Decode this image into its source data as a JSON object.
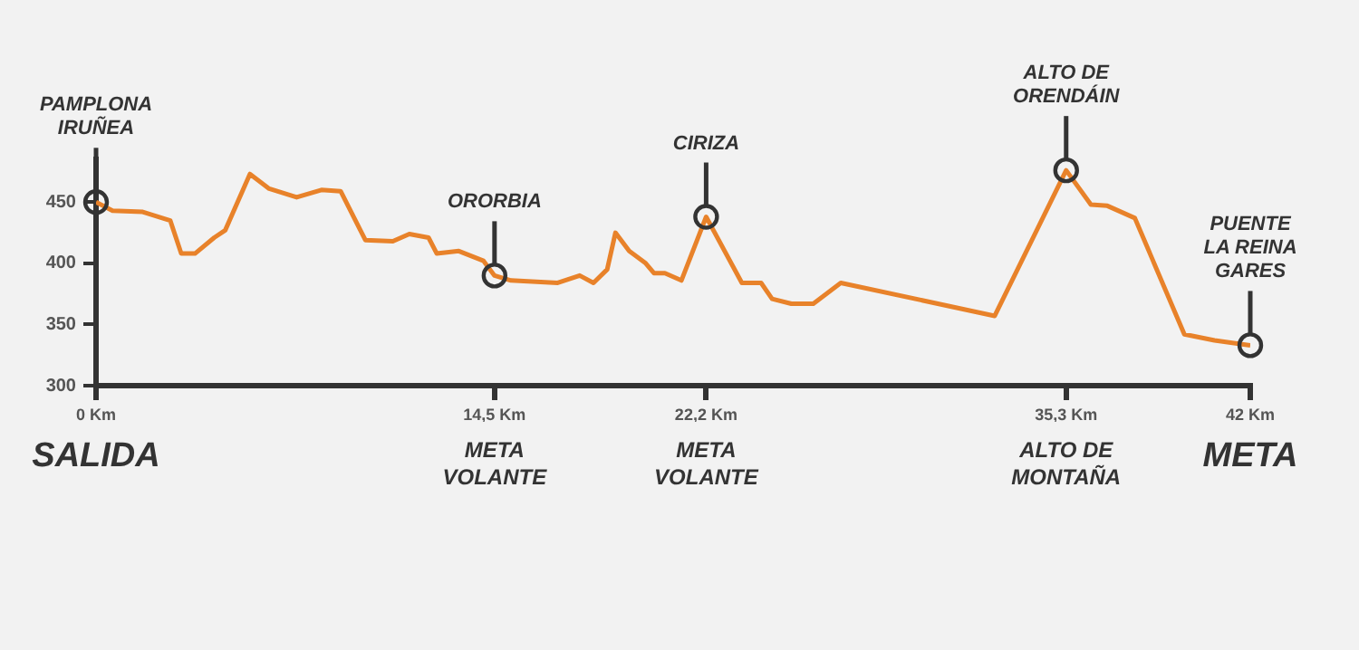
{
  "chart_data": {
    "type": "line",
    "x": [
      0,
      0.6,
      1.7,
      2.7,
      3.1,
      3.6,
      4.3,
      4.7,
      5.6,
      6.3,
      7.3,
      8.2,
      8.9,
      9.8,
      10.8,
      11.4,
      12.1,
      12.4,
      13.2,
      14.1,
      14.5,
      15.1,
      16.8,
      17.6,
      18.1,
      18.6,
      18.9,
      19.4,
      20.0,
      20.3,
      20.7,
      21.3,
      22.2,
      23.5,
      24.2,
      24.6,
      25.3,
      26.1,
      27.1,
      32.7,
      35.3,
      36.2,
      36.8,
      37.8,
      39.6,
      40.7,
      42
    ],
    "series": [
      {
        "color": "#e8822a",
        "values": [
          450,
          443,
          442,
          435,
          408,
          408,
          421,
          427,
          473,
          461,
          454,
          460,
          459,
          419,
          418,
          424,
          421,
          408,
          410,
          402,
          390,
          386,
          384,
          390,
          384,
          395,
          425,
          410,
          400,
          392,
          392,
          386,
          438,
          384,
          384,
          371,
          367,
          367,
          384,
          357,
          476,
          448,
          447,
          437,
          342,
          337,
          333
        ]
      }
    ],
    "xlim": [
      0,
      42
    ],
    "xticks": [
      {
        "value": 0,
        "label": "0 Km"
      },
      {
        "value": 14.5,
        "label": "14,5 Km"
      },
      {
        "value": 22.2,
        "label": "22,2 Km"
      },
      {
        "value": 35.3,
        "label": "35,3 Km"
      },
      {
        "value": 42,
        "label": "42 Km"
      }
    ],
    "ylim": [
      300,
      485
    ],
    "yticks": [
      300,
      350,
      400,
      450
    ],
    "grid": false,
    "legend": false,
    "marker": "none",
    "annotations": [
      {
        "text": "PAMPLONA\nIRUÑEA",
        "x": 0,
        "y": 450
      },
      {
        "text": "ORORBIA",
        "x": 14.5,
        "y": 390
      },
      {
        "text": "CIRIZA",
        "x": 22.2,
        "y": 438
      },
      {
        "text": "ALTO DE\nORENDÁIN",
        "x": 35.3,
        "y": 476
      },
      {
        "text": "PUENTE\nLA REINA\nGARES",
        "x": 42,
        "y": 333
      },
      "SALIDA",
      "META\nVOLANTE",
      "META\nVOLANTE",
      "ALTO DE\nMONTAÑA",
      "META"
    ]
  }
}
